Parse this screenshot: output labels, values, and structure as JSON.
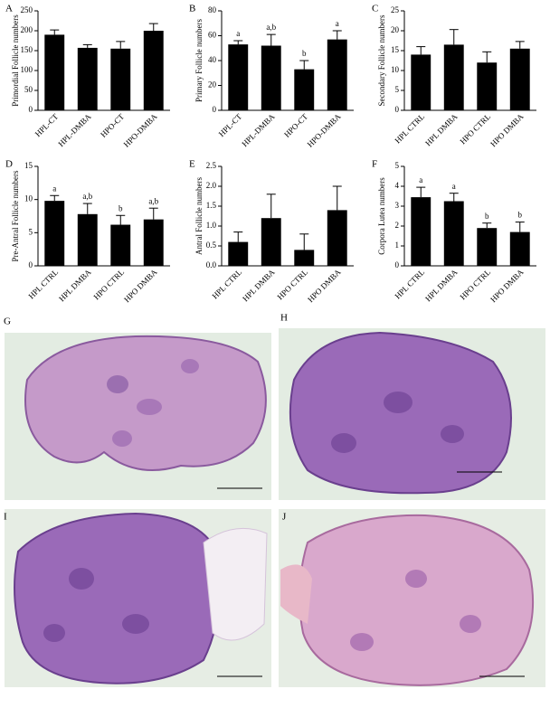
{
  "chart_data": [
    {
      "type": "bar",
      "label": "A",
      "ylabel": "Primordial Follicle numbers",
      "categories": [
        "HPL-CT",
        "HPL-DMBA",
        "HPO-CT",
        "HPO-DMBA"
      ],
      "values": [
        190,
        157,
        155,
        200
      ],
      "errors": [
        12,
        8,
        18,
        18
      ],
      "color": "#000000",
      "ylim": [
        0,
        250
      ],
      "yticks": [
        0,
        50,
        100,
        150,
        200,
        250
      ]
    },
    {
      "type": "bar",
      "label": "B",
      "ylabel": "Primary Follicle numbers",
      "categories": [
        "HPL-CT",
        "HPL-DMBA",
        "HPO-CT",
        "HPO-DMBA"
      ],
      "values": [
        53,
        52,
        33,
        57
      ],
      "errors": [
        3,
        9,
        7,
        7
      ],
      "annotations": [
        "a",
        "a,b",
        "b",
        "a"
      ],
      "color": "#000000",
      "ylim": [
        0,
        80
      ],
      "yticks": [
        0,
        20,
        40,
        60,
        80
      ]
    },
    {
      "type": "bar",
      "label": "C",
      "ylabel": "Secondary Follicle numbers",
      "categories": [
        "HPL CTRL",
        "HPL DMBA",
        "HPO CTRL",
        "HPO DMBA"
      ],
      "values": [
        14,
        16.5,
        12,
        15.5
      ],
      "errors": [
        2,
        3.8,
        2.7,
        1.8
      ],
      "color": "#000000",
      "ylim": [
        0,
        25
      ],
      "yticks": [
        0,
        5,
        10,
        15,
        20,
        25
      ]
    },
    {
      "type": "bar",
      "label": "D",
      "ylabel": "Pre-Antral Follicle numbers",
      "categories": [
        "HPL CTRL",
        "HPL DMBA",
        "HPO CTRL",
        "HPO DMBA"
      ],
      "values": [
        9.8,
        7.8,
        6.2,
        7.0
      ],
      "errors": [
        0.8,
        1.6,
        1.4,
        1.7
      ],
      "annotations": [
        "a",
        "a,b",
        "b",
        "a,b"
      ],
      "color": "#000000",
      "ylim": [
        0,
        15
      ],
      "yticks": [
        0,
        5,
        10,
        15
      ]
    },
    {
      "type": "bar",
      "label": "E",
      "ylabel": "Antral Follicle numbers",
      "categories": [
        "HPL CTRL",
        "HPL DMBA",
        "HPO CTRL",
        "HPO DMBA"
      ],
      "values": [
        0.6,
        1.2,
        0.4,
        1.4
      ],
      "errors": [
        0.25,
        0.6,
        0.4,
        0.6
      ],
      "color": "#000000",
      "ylim": [
        0,
        2.5
      ],
      "yticks": [
        {
          "value": 0,
          "label": "0.0"
        },
        0.5,
        {
          "value": 1,
          "label": "1.0"
        },
        1.5,
        {
          "value": 2,
          "label": "2.0"
        },
        2.5
      ]
    },
    {
      "type": "bar",
      "label": "F",
      "ylabel": "Corpora Lutea numbers",
      "categories": [
        "HPL CTRL",
        "HPL DMBA",
        "HPO CTRL",
        "HPO DMBA"
      ],
      "values": [
        3.45,
        3.25,
        1.9,
        1.7
      ],
      "errors": [
        0.5,
        0.4,
        0.25,
        0.5
      ],
      "annotations": [
        "a",
        "a",
        "b",
        "b"
      ],
      "color": "#000000",
      "ylim": [
        0,
        5
      ],
      "yticks": [
        0,
        1,
        2,
        3,
        4,
        5
      ]
    }
  ],
  "images": [
    {
      "label": "G"
    },
    {
      "label": "H"
    },
    {
      "label": "I"
    },
    {
      "label": "J"
    }
  ]
}
